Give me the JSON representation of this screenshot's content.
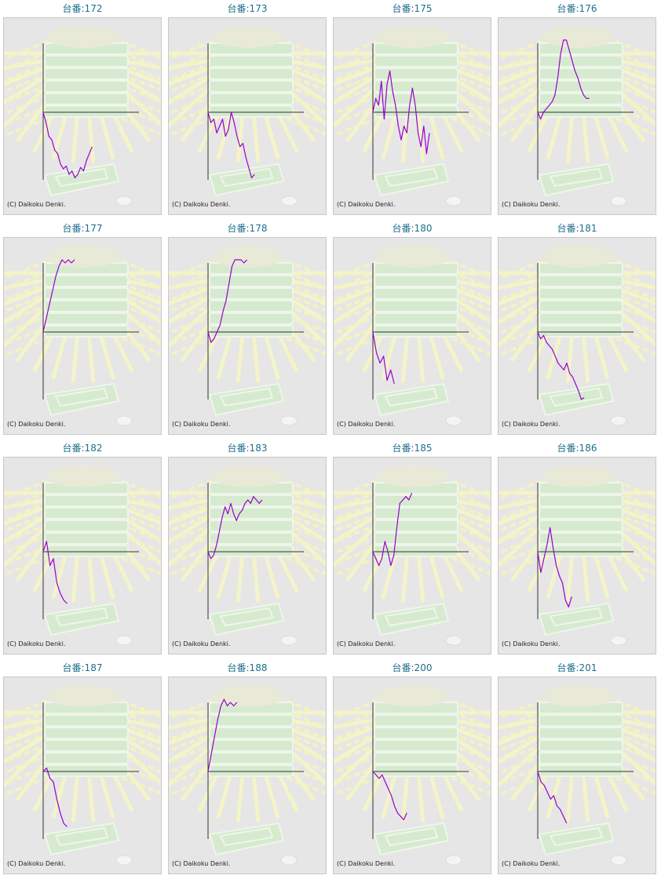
{
  "copyright": "(C) Daikoku Denki.",
  "line_color": "#9900cc",
  "chart_data": [
    {
      "type": "line",
      "title": "台番:172",
      "y": [
        0,
        -0.15,
        -0.35,
        -0.4,
        -0.55,
        -0.6,
        -0.75,
        -0.82,
        -0.78,
        -0.9,
        -0.85,
        -0.95,
        -0.9,
        -0.8,
        -0.85,
        -0.7,
        -0.6,
        -0.5
      ]
    },
    {
      "type": "line",
      "title": "台番:173",
      "y": [
        0,
        -0.15,
        -0.1,
        -0.3,
        -0.2,
        -0.1,
        -0.35,
        -0.25,
        0,
        -0.15,
        -0.35,
        -0.5,
        -0.45,
        -0.65,
        -0.8,
        -0.95,
        -0.9
      ]
    },
    {
      "type": "line",
      "title": "台番:175",
      "y": [
        0,
        0.2,
        0.1,
        0.45,
        -0.1,
        0.4,
        0.6,
        0.3,
        0.1,
        -0.2,
        -0.4,
        -0.2,
        -0.3,
        0.1,
        0.35,
        0.1,
        -0.3,
        -0.5,
        -0.2,
        -0.6,
        -0.3
      ]
    },
    {
      "type": "line",
      "title": "台番:176",
      "y": [
        0,
        -0.1,
        0,
        0.05,
        0.1,
        0.15,
        0.25,
        0.5,
        0.85,
        1.1,
        1.05,
        0.9,
        0.75,
        0.6,
        0.5,
        0.35,
        0.25,
        0.2,
        0.2
      ]
    },
    {
      "type": "line",
      "title": "台番:177",
      "y": [
        0,
        0.2,
        0.4,
        0.6,
        0.8,
        0.95,
        1.05,
        1.0,
        1.05,
        1.0,
        1.05
      ]
    },
    {
      "type": "line",
      "title": "台番:178",
      "y": [
        0,
        -0.15,
        -0.1,
        0,
        0.1,
        0.3,
        0.45,
        0.7,
        0.95,
        1.15,
        1.05,
        1.1,
        1.0,
        1.05
      ]
    },
    {
      "type": "line",
      "title": "台番:180",
      "y": [
        0,
        -0.3,
        -0.45,
        -0.35,
        -0.7,
        -0.55,
        -0.75
      ]
    },
    {
      "type": "line",
      "title": "台番:181",
      "y": [
        0,
        -0.1,
        -0.05,
        -0.15,
        -0.2,
        -0.25,
        -0.35,
        -0.45,
        -0.5,
        -0.55,
        -0.45,
        -0.6,
        -0.65,
        -0.75,
        -0.85,
        -1.0,
        -0.95
      ]
    },
    {
      "type": "line",
      "title": "台番:182",
      "y": [
        0,
        0.15,
        -0.2,
        -0.1,
        -0.45,
        -0.6,
        -0.7,
        -0.75
      ]
    },
    {
      "type": "line",
      "title": "台番:183",
      "y": [
        0,
        -0.1,
        -0.05,
        0.1,
        0.3,
        0.5,
        0.65,
        0.55,
        0.7,
        0.55,
        0.45,
        0.55,
        0.6,
        0.7,
        0.75,
        0.7,
        0.8,
        0.75,
        0.7,
        0.75
      ]
    },
    {
      "type": "line",
      "title": "台番:185",
      "y": [
        0,
        -0.1,
        -0.2,
        -0.1,
        0.15,
        0.0,
        -0.2,
        -0.05,
        0.35,
        0.7,
        0.75,
        0.8,
        0.75,
        0.85
      ]
    },
    {
      "type": "line",
      "title": "台番:186",
      "y": [
        0,
        -0.3,
        -0.1,
        0.1,
        0.35,
        0.05,
        -0.2,
        -0.35,
        -0.45,
        -0.7,
        -0.8,
        -0.65
      ]
    },
    {
      "type": "line",
      "title": "台番:187",
      "y": [
        0,
        0.05,
        -0.1,
        -0.15,
        -0.4,
        -0.6,
        -0.75,
        -0.8
      ]
    },
    {
      "type": "line",
      "title": "台番:188",
      "y": [
        0,
        0.25,
        0.5,
        0.75,
        0.95,
        1.05,
        0.95,
        1.0,
        0.95,
        1.0
      ]
    },
    {
      "type": "line",
      "title": "台番:200",
      "y": [
        0,
        -0.05,
        -0.1,
        -0.05,
        -0.15,
        -0.25,
        -0.35,
        -0.5,
        -0.6,
        -0.65,
        -0.7,
        -0.6
      ]
    },
    {
      "type": "line",
      "title": "台番:201",
      "y": [
        0,
        -0.15,
        -0.2,
        -0.3,
        -0.4,
        -0.35,
        -0.5,
        -0.55,
        -0.65,
        -0.75
      ]
    }
  ]
}
